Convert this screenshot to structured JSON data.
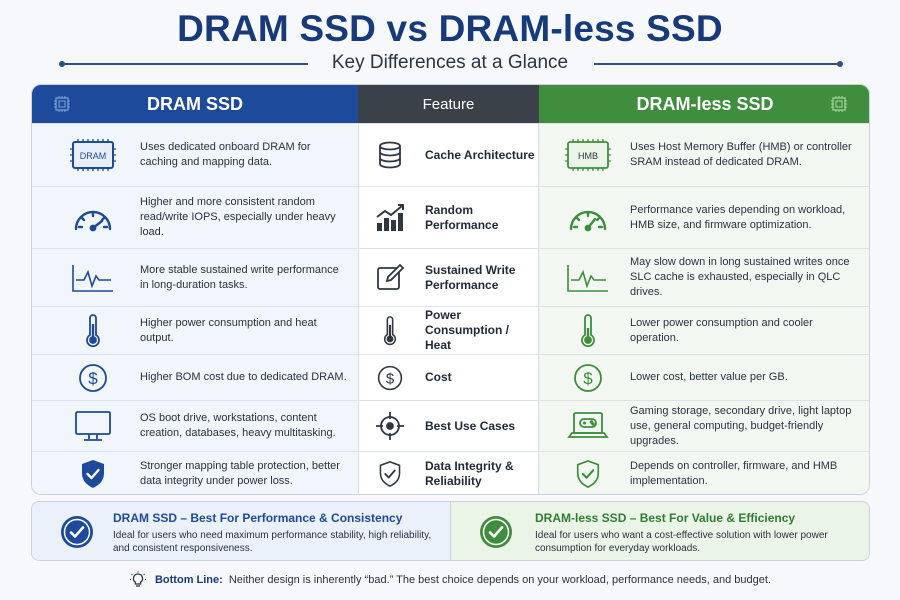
{
  "header": {
    "title": "DRAM SSD vs DRAM-less SSD",
    "subtitle": "Key Differences at a Glance"
  },
  "columns": {
    "left": "DRAM SSD",
    "middle": "Feature",
    "right": "DRAM-less SSD"
  },
  "rows": [
    {
      "feature": "Cache Architecture",
      "left_icon": "dram-chip-icon",
      "left_icon_label": "DRAM",
      "feature_icon": "database-icon",
      "right_icon": "hmb-chip-icon",
      "right_icon_label": "HMB",
      "dram": "Uses dedicated onboard DRAM for caching and mapping data.",
      "dramless": "Uses Host Memory Buffer (HMB) or controller SRAM instead of dedicated DRAM."
    },
    {
      "feature": "Random Performance",
      "left_icon": "speedometer-icon",
      "feature_icon": "bar-chart-icon",
      "right_icon": "speedometer-icon",
      "dram": "Higher and more consistent random read/write IOPS, especially under heavy load.",
      "dramless": "Performance varies depending on workload, HMB size, and firmware optimization."
    },
    {
      "feature": "Sustained Write Performance",
      "left_icon": "waveform-icon",
      "feature_icon": "edit-icon",
      "right_icon": "waveform-icon",
      "dram": "More stable sustained write performance in long-duration tasks.",
      "dramless": "May slow down in long sustained writes once SLC cache is exhausted, especially in QLC drives."
    },
    {
      "feature": "Power Consumption / Heat",
      "left_icon": "thermometer-icon",
      "feature_icon": "thermometer-icon",
      "right_icon": "thermometer-icon",
      "dram": "Higher power consumption and heat output.",
      "dramless": "Lower power consumption and cooler operation."
    },
    {
      "feature": "Cost",
      "left_icon": "dollar-icon",
      "feature_icon": "dollar-icon",
      "right_icon": "dollar-icon",
      "dram": "Higher BOM cost due to dedicated DRAM.",
      "dramless": "Lower cost, better value per GB."
    },
    {
      "feature": "Best Use Cases",
      "left_icon": "monitor-icon",
      "feature_icon": "target-icon",
      "right_icon": "laptop-gamepad-icon",
      "dram": "OS boot drive, workstations, content creation, databases, heavy multitasking.",
      "dramless": "Gaming storage, secondary drive, light laptop use, general computing, budget-friendly upgrades."
    },
    {
      "feature": "Data Integrity & Reliability",
      "left_icon": "shield-check-icon",
      "feature_icon": "shield-check-icon",
      "right_icon": "shield-check-icon",
      "dram": "Stronger mapping table protection, better data integrity under power loss.",
      "dramless": "Depends on controller, firmware, and HMB implementation."
    }
  ],
  "summary": {
    "dram": {
      "title": "DRAM SSD – Best For Performance & Consistency",
      "desc": "Ideal for users who need maximum performance stability, high reliability, and consistent responsiveness."
    },
    "dramless": {
      "title": "DRAM-less SSD – Best For Value & Efficiency",
      "desc": "Ideal for users who want a cost-effective solution with lower power consumption for everyday workloads."
    }
  },
  "bottom_line": {
    "label": "Bottom Line:",
    "text": "Neither design is inherently “bad.” The best choice depends on your workload, performance needs, and budget."
  },
  "colors": {
    "navy": "#173a7a",
    "blue": "#1d4a9a",
    "dark": "#3a4149",
    "green": "#3e8e3e"
  }
}
